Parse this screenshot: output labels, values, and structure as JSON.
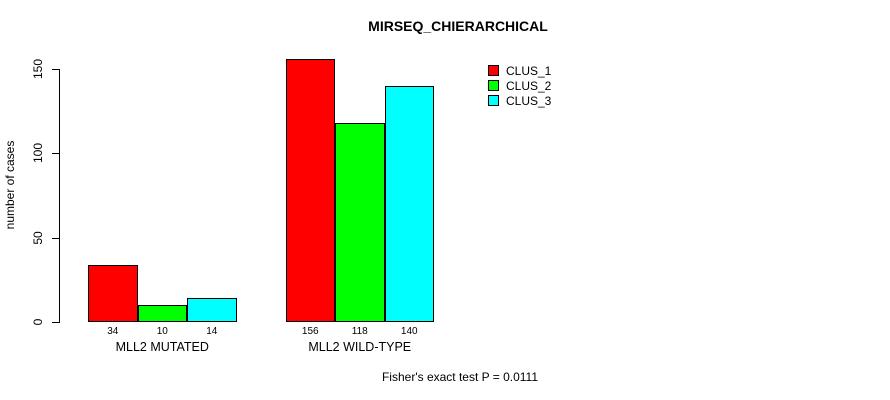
{
  "title": "MIRSEQ_CHIERARCHICAL",
  "footer": {
    "note": "Fisher's exact test P = 0.0111"
  },
  "chart_data": {
    "type": "bar",
    "title": "MIRSEQ_CHIERARCHICAL",
    "categories": [
      "MLL2 MUTATED",
      "MLL2 WILD-TYPE"
    ],
    "series": [
      {
        "name": "CLUS_1",
        "color": "#ff0000",
        "values": [
          34,
          156
        ]
      },
      {
        "name": "CLUS_2",
        "color": "#00ff00",
        "values": [
          10,
          118
        ]
      },
      {
        "name": "CLUS_3",
        "color": "#00ffff",
        "values": [
          14,
          140
        ]
      }
    ],
    "xlabel": "",
    "ylabel": "number of cases",
    "yticks": [
      0,
      50,
      100,
      150
    ],
    "ylim": [
      0,
      156
    ],
    "bar_value_labels": [
      [
        "34",
        "10",
        "14"
      ],
      [
        "156",
        "118",
        "140"
      ]
    ],
    "legend_entries": [
      "CLUS_1",
      "CLUS_2",
      "CLUS_3"
    ],
    "legend_position": "top-right",
    "grid": false,
    "annotation": "Fisher's exact test P = 0.0111"
  }
}
